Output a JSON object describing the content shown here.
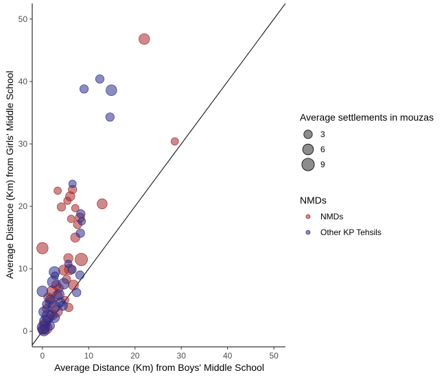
{
  "chart_data": {
    "type": "scatter",
    "xlabel": "Average Distance (Km) from Boys' Middle School",
    "ylabel": "Average Distance (Km) from Girls' Middle School",
    "xlim": [
      -2.2,
      52.5
    ],
    "ylim": [
      -2.5,
      52.5
    ],
    "xticks": [
      0,
      10,
      20,
      30,
      40,
      50
    ],
    "yticks": [
      0,
      10,
      20,
      30,
      40,
      50
    ],
    "grid": false,
    "reference_line": "y = x",
    "size_legend": {
      "title": "Average settlements in mouzas",
      "values": [
        3,
        6,
        9
      ]
    },
    "color_legend": {
      "title": "NMDs",
      "entries": [
        "NMDs",
        "Other KP Tehsils"
      ]
    },
    "colors": {
      "NMDs": "#a52a2a",
      "Other KP Tehsils": "#2e2e8a"
    },
    "series": [
      {
        "name": "NMDs",
        "points": [
          {
            "x": 22.0,
            "y": 46.8,
            "s": 6
          },
          {
            "x": 28.6,
            "y": 30.4,
            "s": 2
          },
          {
            "x": 3.3,
            "y": 22.5,
            "s": 2
          },
          {
            "x": 6.5,
            "y": 22.7,
            "s": 3
          },
          {
            "x": 6.0,
            "y": 21.6,
            "s": 4
          },
          {
            "x": 5.4,
            "y": 20.9,
            "s": 2
          },
          {
            "x": 4.1,
            "y": 19.9,
            "s": 3
          },
          {
            "x": 12.9,
            "y": 20.4,
            "s": 5
          },
          {
            "x": 7.1,
            "y": 19.7,
            "s": 2
          },
          {
            "x": 8.1,
            "y": 18.2,
            "s": 4
          },
          {
            "x": 6.2,
            "y": 18.0,
            "s": 2
          },
          {
            "x": 7.6,
            "y": 17.1,
            "s": 3
          },
          {
            "x": 7.1,
            "y": 15.0,
            "s": 4
          },
          {
            "x": 0.0,
            "y": 13.3,
            "s": 7
          },
          {
            "x": 5.6,
            "y": 11.7,
            "s": 4
          },
          {
            "x": 8.4,
            "y": 11.5,
            "s": 9
          },
          {
            "x": 4.6,
            "y": 9.8,
            "s": 5
          },
          {
            "x": 5.9,
            "y": 9.9,
            "s": 6
          },
          {
            "x": 5.2,
            "y": 8.3,
            "s": 3
          },
          {
            "x": 3.0,
            "y": 7.4,
            "s": 4
          },
          {
            "x": 6.7,
            "y": 7.4,
            "s": 5
          },
          {
            "x": 2.1,
            "y": 6.4,
            "s": 6
          },
          {
            "x": 3.6,
            "y": 6.9,
            "s": 3
          },
          {
            "x": 1.3,
            "y": 5.4,
            "s": 4
          },
          {
            "x": 3.2,
            "y": 5.7,
            "s": 5
          },
          {
            "x": 4.9,
            "y": 5.0,
            "s": 2
          },
          {
            "x": 1.8,
            "y": 4.6,
            "s": 6
          },
          {
            "x": 0.9,
            "y": 3.6,
            "s": 3
          },
          {
            "x": 3.1,
            "y": 3.2,
            "s": 7
          },
          {
            "x": 5.7,
            "y": 3.8,
            "s": 3
          },
          {
            "x": 2.1,
            "y": 2.6,
            "s": 5
          },
          {
            "x": 1.2,
            "y": 2.0,
            "s": 4
          },
          {
            "x": 0.5,
            "y": 1.1,
            "s": 6
          },
          {
            "x": 0.8,
            "y": 0.5,
            "s": 8
          },
          {
            "x": 0.1,
            "y": 0.3,
            "s": 5
          }
        ]
      },
      {
        "name": "Other KP Tehsils",
        "points": [
          {
            "x": 12.4,
            "y": 40.4,
            "s": 3
          },
          {
            "x": 9.0,
            "y": 38.8,
            "s": 3
          },
          {
            "x": 14.9,
            "y": 38.6,
            "s": 6
          },
          {
            "x": 14.6,
            "y": 34.3,
            "s": 3
          },
          {
            "x": 6.5,
            "y": 23.6,
            "s": 2
          },
          {
            "x": 8.3,
            "y": 18.8,
            "s": 3
          },
          {
            "x": 8.5,
            "y": 17.6,
            "s": 2
          },
          {
            "x": 8.2,
            "y": 15.7,
            "s": 3
          },
          {
            "x": 5.6,
            "y": 10.8,
            "s": 2
          },
          {
            "x": 2.6,
            "y": 9.5,
            "s": 6
          },
          {
            "x": 2.7,
            "y": 8.9,
            "s": 2
          },
          {
            "x": 6.4,
            "y": 9.9,
            "s": 3
          },
          {
            "x": 8.1,
            "y": 9.0,
            "s": 3
          },
          {
            "x": 2.3,
            "y": 7.9,
            "s": 7
          },
          {
            "x": 4.6,
            "y": 7.6,
            "s": 6
          },
          {
            "x": 0.0,
            "y": 6.4,
            "s": 6
          },
          {
            "x": 3.6,
            "y": 5.9,
            "s": 5
          },
          {
            "x": 7.4,
            "y": 6.2,
            "s": 3
          },
          {
            "x": 1.7,
            "y": 5.1,
            "s": 4
          },
          {
            "x": 3.9,
            "y": 4.6,
            "s": 4
          },
          {
            "x": 2.5,
            "y": 3.9,
            "s": 8
          },
          {
            "x": 0.3,
            "y": 3.1,
            "s": 5
          },
          {
            "x": 1.2,
            "y": 2.4,
            "s": 9
          },
          {
            "x": 2.6,
            "y": 2.2,
            "s": 5
          },
          {
            "x": 0.6,
            "y": 1.6,
            "s": 7
          },
          {
            "x": 0.2,
            "y": 0.6,
            "s": 9
          },
          {
            "x": 1.6,
            "y": 0.9,
            "s": 4
          },
          {
            "x": 0.3,
            "y": 0.1,
            "s": 6
          },
          {
            "x": 0.9,
            "y": 4.3,
            "s": 3
          },
          {
            "x": 4.4,
            "y": 4.1,
            "s": 4
          }
        ]
      }
    ]
  }
}
